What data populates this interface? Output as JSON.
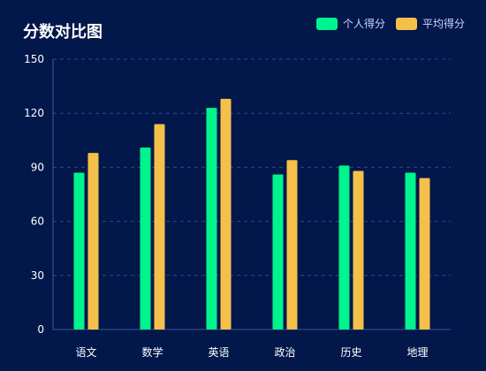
{
  "chart_data": {
    "type": "bar",
    "title": "分数对比图",
    "categories": [
      "语文",
      "数学",
      "英语",
      "政治",
      "历史",
      "地理"
    ],
    "series": [
      {
        "name": "个人得分",
        "color": "#00f48e",
        "values": [
          87,
          101,
          123,
          86,
          91,
          87
        ]
      },
      {
        "name": "平均得分",
        "color": "#f5c04a",
        "values": [
          98,
          114,
          128,
          94,
          88,
          84
        ]
      }
    ],
    "yticks": [
      0,
      30,
      60,
      90,
      120,
      150
    ],
    "ylim": [
      0,
      150
    ],
    "grid": true,
    "legend_position": "top-right"
  }
}
